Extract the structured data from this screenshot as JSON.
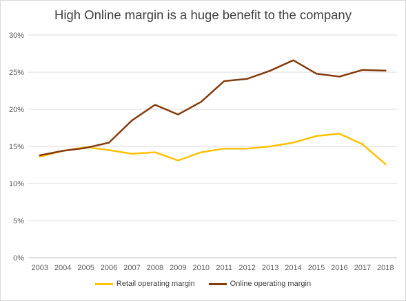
{
  "chart_data": {
    "type": "line",
    "title": "High Online margin is a huge benefit to the company",
    "xlabel": "",
    "ylabel": "",
    "categories": [
      "2003",
      "2004",
      "2005",
      "2006",
      "2007",
      "2008",
      "2009",
      "2010",
      "2011",
      "2012",
      "2013",
      "2014",
      "2015",
      "2016",
      "2017",
      "2018"
    ],
    "ylim": [
      0,
      30
    ],
    "yticks": [
      "0%",
      "5%",
      "10%",
      "15%",
      "20%",
      "25%",
      "30%"
    ],
    "grid": true,
    "legend_position": "bottom",
    "series": [
      {
        "name": "Retail operating margin",
        "color": "#FFC000",
        "values": [
          13.6,
          14.4,
          14.9,
          14.5,
          14.0,
          14.2,
          13.1,
          14.2,
          14.7,
          14.7,
          15.0,
          15.5,
          16.4,
          16.7,
          15.3,
          12.6
        ]
      },
      {
        "name": "Online operating margin",
        "color": "#843C0C",
        "values": [
          13.8,
          14.4,
          14.8,
          15.5,
          18.5,
          20.6,
          19.3,
          21.0,
          23.8,
          24.1,
          25.2,
          26.6,
          24.8,
          24.4,
          25.3,
          25.2
        ]
      }
    ]
  }
}
